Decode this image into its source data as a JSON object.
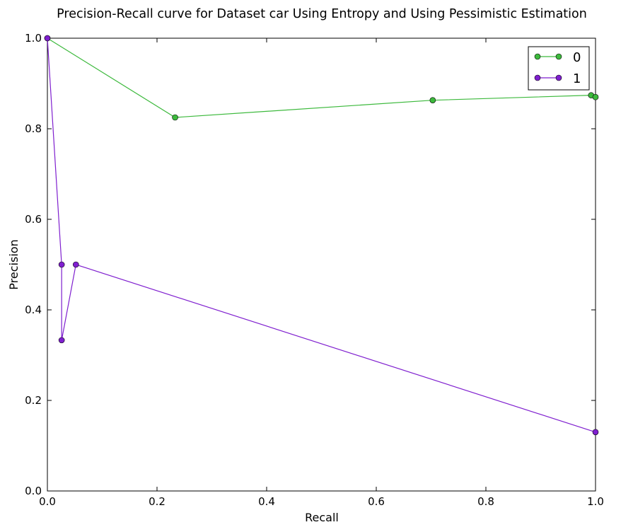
{
  "chart_data": {
    "type": "line",
    "title": "Precision-Recall curve for Dataset car Using Entropy and Using Pessimistic Estimation",
    "xlabel": "Recall",
    "ylabel": "Precision",
    "xlim": [
      0.0,
      1.0
    ],
    "ylim": [
      0.0,
      1.0
    ],
    "xticks": [
      "0.0",
      "0.2",
      "0.4",
      "0.6",
      "0.8",
      "1.0"
    ],
    "yticks": [
      "0.0",
      "0.2",
      "0.4",
      "0.6",
      "0.8",
      "1.0"
    ],
    "grid": false,
    "legend_position": "top-right",
    "series": [
      {
        "name": "0",
        "color": "#3cb93c",
        "marker": "circle",
        "points": [
          [
            0.0,
            1.0
          ],
          [
            0.233,
            0.825
          ],
          [
            0.703,
            0.863
          ],
          [
            0.992,
            0.874
          ],
          [
            1.0,
            0.87
          ]
        ]
      },
      {
        "name": "1",
        "color": "#7f1fcf",
        "marker": "circle",
        "points": [
          [
            0.0,
            1.0
          ],
          [
            0.026,
            0.5
          ],
          [
            0.026,
            0.333
          ],
          [
            0.052,
            0.5
          ],
          [
            1.0,
            0.13
          ]
        ]
      }
    ]
  }
}
